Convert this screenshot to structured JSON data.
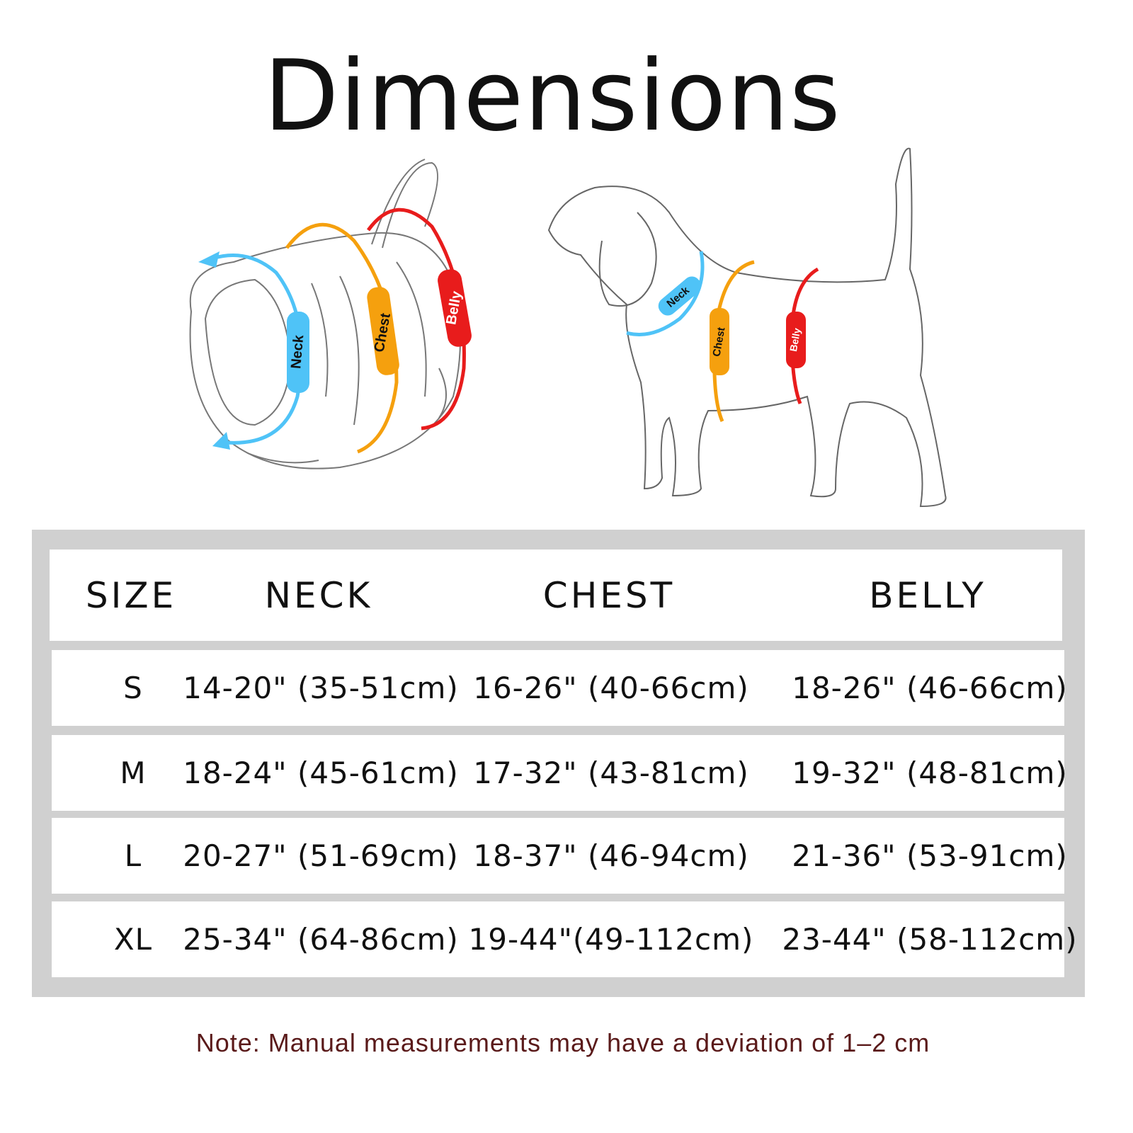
{
  "title": "Dimensions",
  "illustration": {
    "harness_labels": {
      "neck": "Neck",
      "chest": "Chest",
      "belly": "Belly"
    },
    "dog_labels": {
      "neck": "Neck",
      "chest": "Chest",
      "belly": "Belly"
    },
    "colors": {
      "neck": "#4fc3f7",
      "chest": "#f5a00e",
      "belly": "#e81c1c"
    }
  },
  "table": {
    "headers": [
      "SIZE",
      "NECK",
      "CHEST",
      "BELLY"
    ],
    "rows": [
      [
        "S",
        "14-20\" (35-51cm)",
        "16-26\" (40-66cm)",
        "18-26\" (46-66cm)"
      ],
      [
        "M",
        "18-24\" (45-61cm)",
        "17-32\" (43-81cm)",
        "19-32\" (48-81cm)"
      ],
      [
        "L",
        "20-27\" (51-69cm)",
        "18-37\" (46-94cm)",
        "21-36\" (53-91cm)"
      ],
      [
        "XL",
        "25-34\" (64-86cm)",
        "19-44\"(49-112cm)",
        "23-44\" (58-112cm)"
      ]
    ]
  },
  "note": "Note: Manual measurements may have a deviation of 1–2 cm"
}
